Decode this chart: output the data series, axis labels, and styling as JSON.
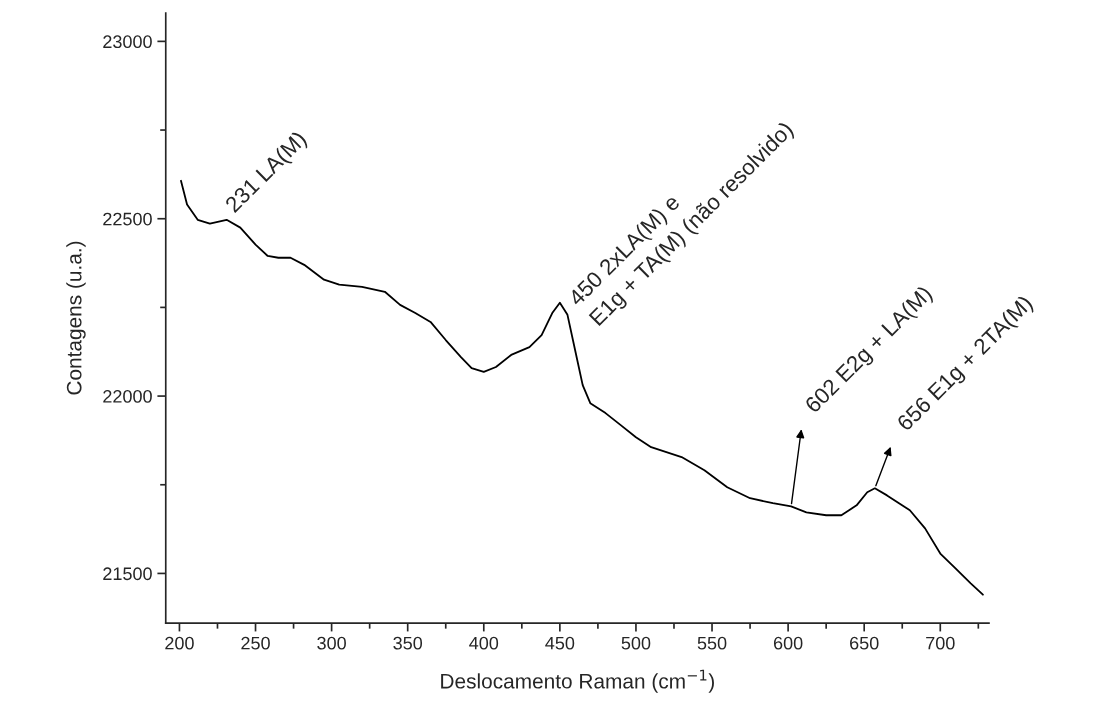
{
  "chart_data": {
    "type": "line",
    "xlabel": "Deslocamento Raman (cm$^{−1}$)",
    "ylabel": "Contagens (u.a.)",
    "x": [
      201,
      205,
      212,
      220,
      231,
      240,
      250,
      258,
      265,
      273,
      282,
      295,
      305,
      320,
      335,
      345,
      355,
      365,
      375,
      385,
      392,
      400,
      408,
      418,
      430,
      438,
      445,
      450,
      455,
      460,
      465,
      470,
      480,
      490,
      500,
      510,
      520,
      530,
      545,
      560,
      575,
      590,
      602,
      612,
      625,
      635,
      645,
      652,
      657,
      665,
      680,
      690,
      700,
      710,
      720,
      728
    ],
    "series": [
      {
        "color": "#000000",
        "values": [
          22607,
          22540,
          22497,
          22486,
          22497,
          22475,
          22427,
          22395,
          22390,
          22390,
          22370,
          22328,
          22314,
          22308,
          22294,
          22257,
          22234,
          22209,
          22158,
          22110,
          22079,
          22068,
          22082,
          22116,
          22138,
          22172,
          22234,
          22263,
          22229,
          22130,
          22031,
          21980,
          21952,
          21918,
          21884,
          21856,
          21842,
          21828,
          21791,
          21743,
          21712,
          21698,
          21689,
          21672,
          21664,
          21664,
          21692,
          21729,
          21740,
          21720,
          21678,
          21627,
          21556,
          21514,
          21472,
          21440
        ]
      }
    ],
    "xlim": [
      191,
      732
    ],
    "ylim": [
      21360,
      23080
    ],
    "xticks": [
      200,
      250,
      300,
      350,
      400,
      450,
      500,
      550,
      600,
      650,
      700
    ],
    "yticks": [
      21500,
      22000,
      22500,
      23000
    ],
    "grid": false,
    "legend": false,
    "marker": "none",
    "line_style": "solid",
    "annotations": [
      {
        "text": "231 LA(M)",
        "x": 231,
        "y": 22497
      },
      {
        "text": "450 2xLA(M) e\nE1g + TA(M) (não resolvido)",
        "x": 450,
        "y": 22263
      },
      {
        "text": "602 E2g + LA(M)",
        "x": 602,
        "y": 21689
      },
      {
        "text": "656 E1g + 2TA(M)",
        "x": 657,
        "y": 21740
      }
    ]
  }
}
